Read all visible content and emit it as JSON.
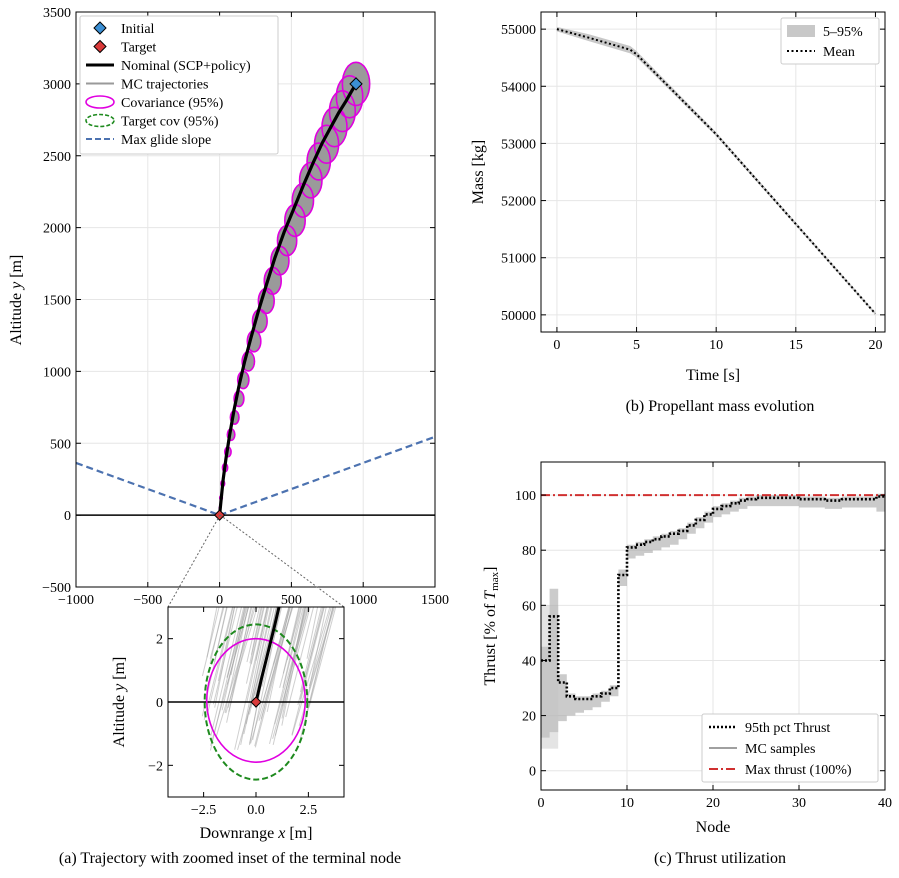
{
  "captions": {
    "a": "(a) Trajectory with zoomed inset of the terminal node",
    "b": "(b) Propellant mass evolution",
    "c": "(c) Thrust utilization"
  },
  "chart_data": [
    {
      "id": "trajectory",
      "type": "line",
      "xlabel": "Downrange x [m]",
      "ylabel": "Altitude y [m]",
      "xlim": [
        -1000,
        1500
      ],
      "ylim": [
        -500,
        3500
      ],
      "xticks": [
        -1000,
        -500,
        0,
        500,
        1000,
        1500
      ],
      "yticks": [
        -500,
        0,
        500,
        1000,
        1500,
        2000,
        2500,
        3000,
        3500
      ],
      "grid": true,
      "legend": "top-left",
      "legend_entries": [
        "Initial",
        "Target",
        "Nominal (SCP+policy)",
        "MC trajectories",
        "Covariance (95%)",
        "Target cov (95%)",
        "Max glide slope"
      ],
      "initial": {
        "x": 950,
        "y": 3000
      },
      "target": {
        "x": 0,
        "y": 0
      },
      "nominal": {
        "x": [
          0,
          10,
          25,
          45,
          70,
          100,
          135,
          175,
          220,
          270,
          325,
          385,
          450,
          520,
          590,
          655,
          715,
          775,
          830,
          880,
          920,
          950
        ],
        "y": [
          0,
          100,
          250,
          400,
          560,
          730,
          900,
          1070,
          1240,
          1420,
          1600,
          1790,
          1970,
          2140,
          2310,
          2460,
          2590,
          2700,
          2800,
          2880,
          2950,
          3000
        ]
      },
      "covariance_nodes": [
        {
          "x": 950,
          "y": 3000,
          "rx": 95,
          "ry": 150
        },
        {
          "x": 905,
          "y": 2910,
          "rx": 92,
          "ry": 146
        },
        {
          "x": 855,
          "y": 2810,
          "rx": 90,
          "ry": 142
        },
        {
          "x": 800,
          "y": 2700,
          "rx": 87,
          "ry": 137
        },
        {
          "x": 745,
          "y": 2580,
          "rx": 84,
          "ry": 132
        },
        {
          "x": 690,
          "y": 2460,
          "rx": 81,
          "ry": 128
        },
        {
          "x": 635,
          "y": 2330,
          "rx": 78,
          "ry": 123
        },
        {
          "x": 580,
          "y": 2190,
          "rx": 74,
          "ry": 117
        },
        {
          "x": 525,
          "y": 2050,
          "rx": 71,
          "ry": 111
        },
        {
          "x": 470,
          "y": 1910,
          "rx": 67,
          "ry": 105
        },
        {
          "x": 420,
          "y": 1770,
          "rx": 63,
          "ry": 99
        },
        {
          "x": 370,
          "y": 1630,
          "rx": 59,
          "ry": 93
        },
        {
          "x": 325,
          "y": 1490,
          "rx": 55,
          "ry": 87
        },
        {
          "x": 280,
          "y": 1350,
          "rx": 51,
          "ry": 80
        },
        {
          "x": 240,
          "y": 1210,
          "rx": 47,
          "ry": 74
        },
        {
          "x": 200,
          "y": 1070,
          "rx": 43,
          "ry": 67
        },
        {
          "x": 165,
          "y": 940,
          "rx": 39,
          "ry": 60
        },
        {
          "x": 135,
          "y": 810,
          "rx": 34,
          "ry": 54
        },
        {
          "x": 105,
          "y": 680,
          "rx": 30,
          "ry": 47
        },
        {
          "x": 80,
          "y": 560,
          "rx": 26,
          "ry": 40
        },
        {
          "x": 58,
          "y": 440,
          "rx": 22,
          "ry": 34
        },
        {
          "x": 38,
          "y": 330,
          "rx": 18,
          "ry": 28
        },
        {
          "x": 22,
          "y": 220,
          "rx": 13,
          "ry": 21
        },
        {
          "x": 10,
          "y": 120,
          "rx": 9,
          "ry": 14
        },
        {
          "x": 3,
          "y": 50,
          "rx": 5,
          "ry": 8
        }
      ],
      "glide_slope": {
        "left": [
          [
            -1000,
            363
          ],
          [
            0,
            0
          ]
        ],
        "right": [
          [
            0,
            0
          ],
          [
            1500,
            545
          ]
        ]
      }
    },
    {
      "id": "inset",
      "type": "line",
      "xlabel": "Downrange x [m]",
      "ylabel": "Altitude y [m]",
      "xlim": [
        -4.2,
        4.2
      ],
      "ylim": [
        -3.0,
        3.0
      ],
      "xticks": [
        -2.5,
        0.0,
        2.5
      ],
      "yticks": [
        -2,
        0,
        2
      ],
      "target": {
        "x": 0,
        "y": 0
      },
      "nominal": {
        "x": [
          0,
          0.25,
          0.55,
          0.85,
          1.1
        ],
        "y": [
          0,
          0.7,
          1.5,
          2.3,
          3.0
        ]
      },
      "covariance": {
        "cx": 0,
        "cy": 0.05,
        "rx": 2.35,
        "ry": 1.95
      },
      "target_cov": {
        "cx": 0,
        "cy": 0,
        "rx": 2.45,
        "ry": 2.45
      }
    },
    {
      "id": "mass",
      "type": "line",
      "xlabel": "Time [s]",
      "ylabel": "Mass [kg]",
      "xlim": [
        -1,
        20.6
      ],
      "ylim": [
        49700,
        55300
      ],
      "xticks": [
        0,
        5,
        10,
        15,
        20
      ],
      "yticks": [
        50000,
        51000,
        52000,
        53000,
        54000,
        55000
      ],
      "grid": true,
      "legend": "top-right",
      "legend_entries": [
        "5–95%",
        "Mean"
      ],
      "mean": {
        "x": [
          0,
          2,
          4.6,
          5,
          10,
          15,
          20
        ],
        "y": [
          55000,
          54850,
          54640,
          54560,
          53160,
          51590,
          50020
        ]
      },
      "band_width": [
        40,
        60,
        65,
        55,
        35,
        30,
        25
      ]
    },
    {
      "id": "thrust",
      "type": "line",
      "xlabel": "Node",
      "ylabel": "Thrust [% of Tmax]",
      "ylabel_main": "Thrust [% of ",
      "ylabel_sym": "T",
      "ylabel_sub": "max",
      "ylabel_close": "]",
      "xlim": [
        0,
        40
      ],
      "ylim": [
        -7,
        112
      ],
      "xticks": [
        0,
        10,
        20,
        30,
        40
      ],
      "yticks": [
        0,
        20,
        40,
        60,
        80,
        100
      ],
      "grid": true,
      "legend": "bottom-right",
      "legend_entries": [
        "95th pct Thrust",
        "MC samples",
        "Max thrust (100%)"
      ],
      "max_thrust": 100,
      "nodes": [
        0,
        1,
        2,
        3,
        4,
        5,
        6,
        7,
        8,
        9,
        10,
        11,
        12,
        13,
        14,
        15,
        16,
        17,
        18,
        19,
        20,
        21,
        22,
        23,
        24,
        25,
        26,
        27,
        28,
        29,
        30,
        31,
        32,
        33,
        34,
        35,
        36,
        37,
        38,
        39
      ],
      "p95": [
        40,
        56,
        32,
        27,
        26,
        26,
        27,
        28,
        30,
        71,
        81,
        82,
        83,
        84,
        85,
        86,
        87,
        89,
        91,
        93,
        95,
        96,
        97,
        98,
        98.5,
        99,
        99,
        99,
        99,
        99,
        98.5,
        98.5,
        98.5,
        98,
        98,
        98.5,
        98.5,
        98.5,
        98.5,
        99.5
      ],
      "mc_low": [
        12,
        14,
        18,
        20,
        21,
        22,
        23,
        25,
        27,
        67,
        77,
        78,
        79,
        80,
        81,
        82,
        84,
        86,
        88,
        90,
        92,
        93,
        94,
        95,
        96,
        96,
        96,
        96,
        96,
        96,
        95.5,
        95.5,
        95.5,
        95,
        95,
        95.5,
        95.5,
        95.5,
        95.5,
        94
      ],
      "mc_high": [
        45,
        66,
        35,
        28,
        27,
        27,
        28,
        29,
        31,
        73,
        82,
        83,
        84,
        85,
        86,
        87,
        88,
        90,
        92,
        94,
        96,
        97,
        98,
        99,
        99.5,
        100,
        100,
        100,
        100,
        100,
        99.5,
        99.5,
        99.5,
        99,
        99,
        99.5,
        99.5,
        99.5,
        99.5,
        100.5
      ]
    }
  ]
}
